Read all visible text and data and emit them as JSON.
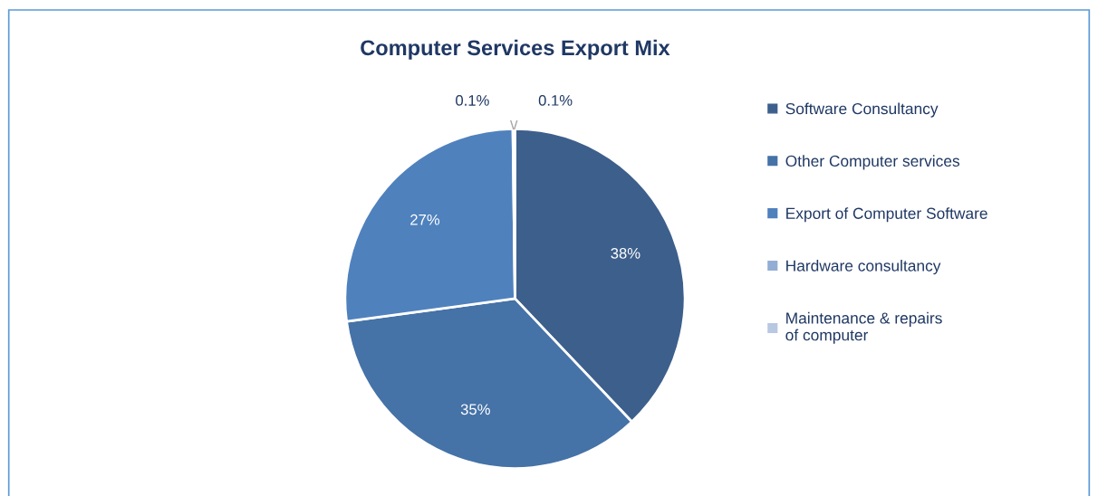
{
  "chart_data": {
    "type": "pie",
    "title": "Computer Services Export Mix",
    "categories": [
      "Software Consultancy",
      "Other Computer services",
      "Export of Computer Software",
      "Hardware consultancy",
      "Maintenance & repairs of computer"
    ],
    "values": [
      38,
      35,
      27,
      0.1,
      0.1
    ],
    "value_labels": [
      "38%",
      "35%",
      "27%",
      "0.1%",
      "0.1%"
    ],
    "colors": [
      "#3d5f8c",
      "#4572a7",
      "#4f81bd",
      "#93aed5",
      "#b9c8e2"
    ],
    "legend": "right"
  }
}
